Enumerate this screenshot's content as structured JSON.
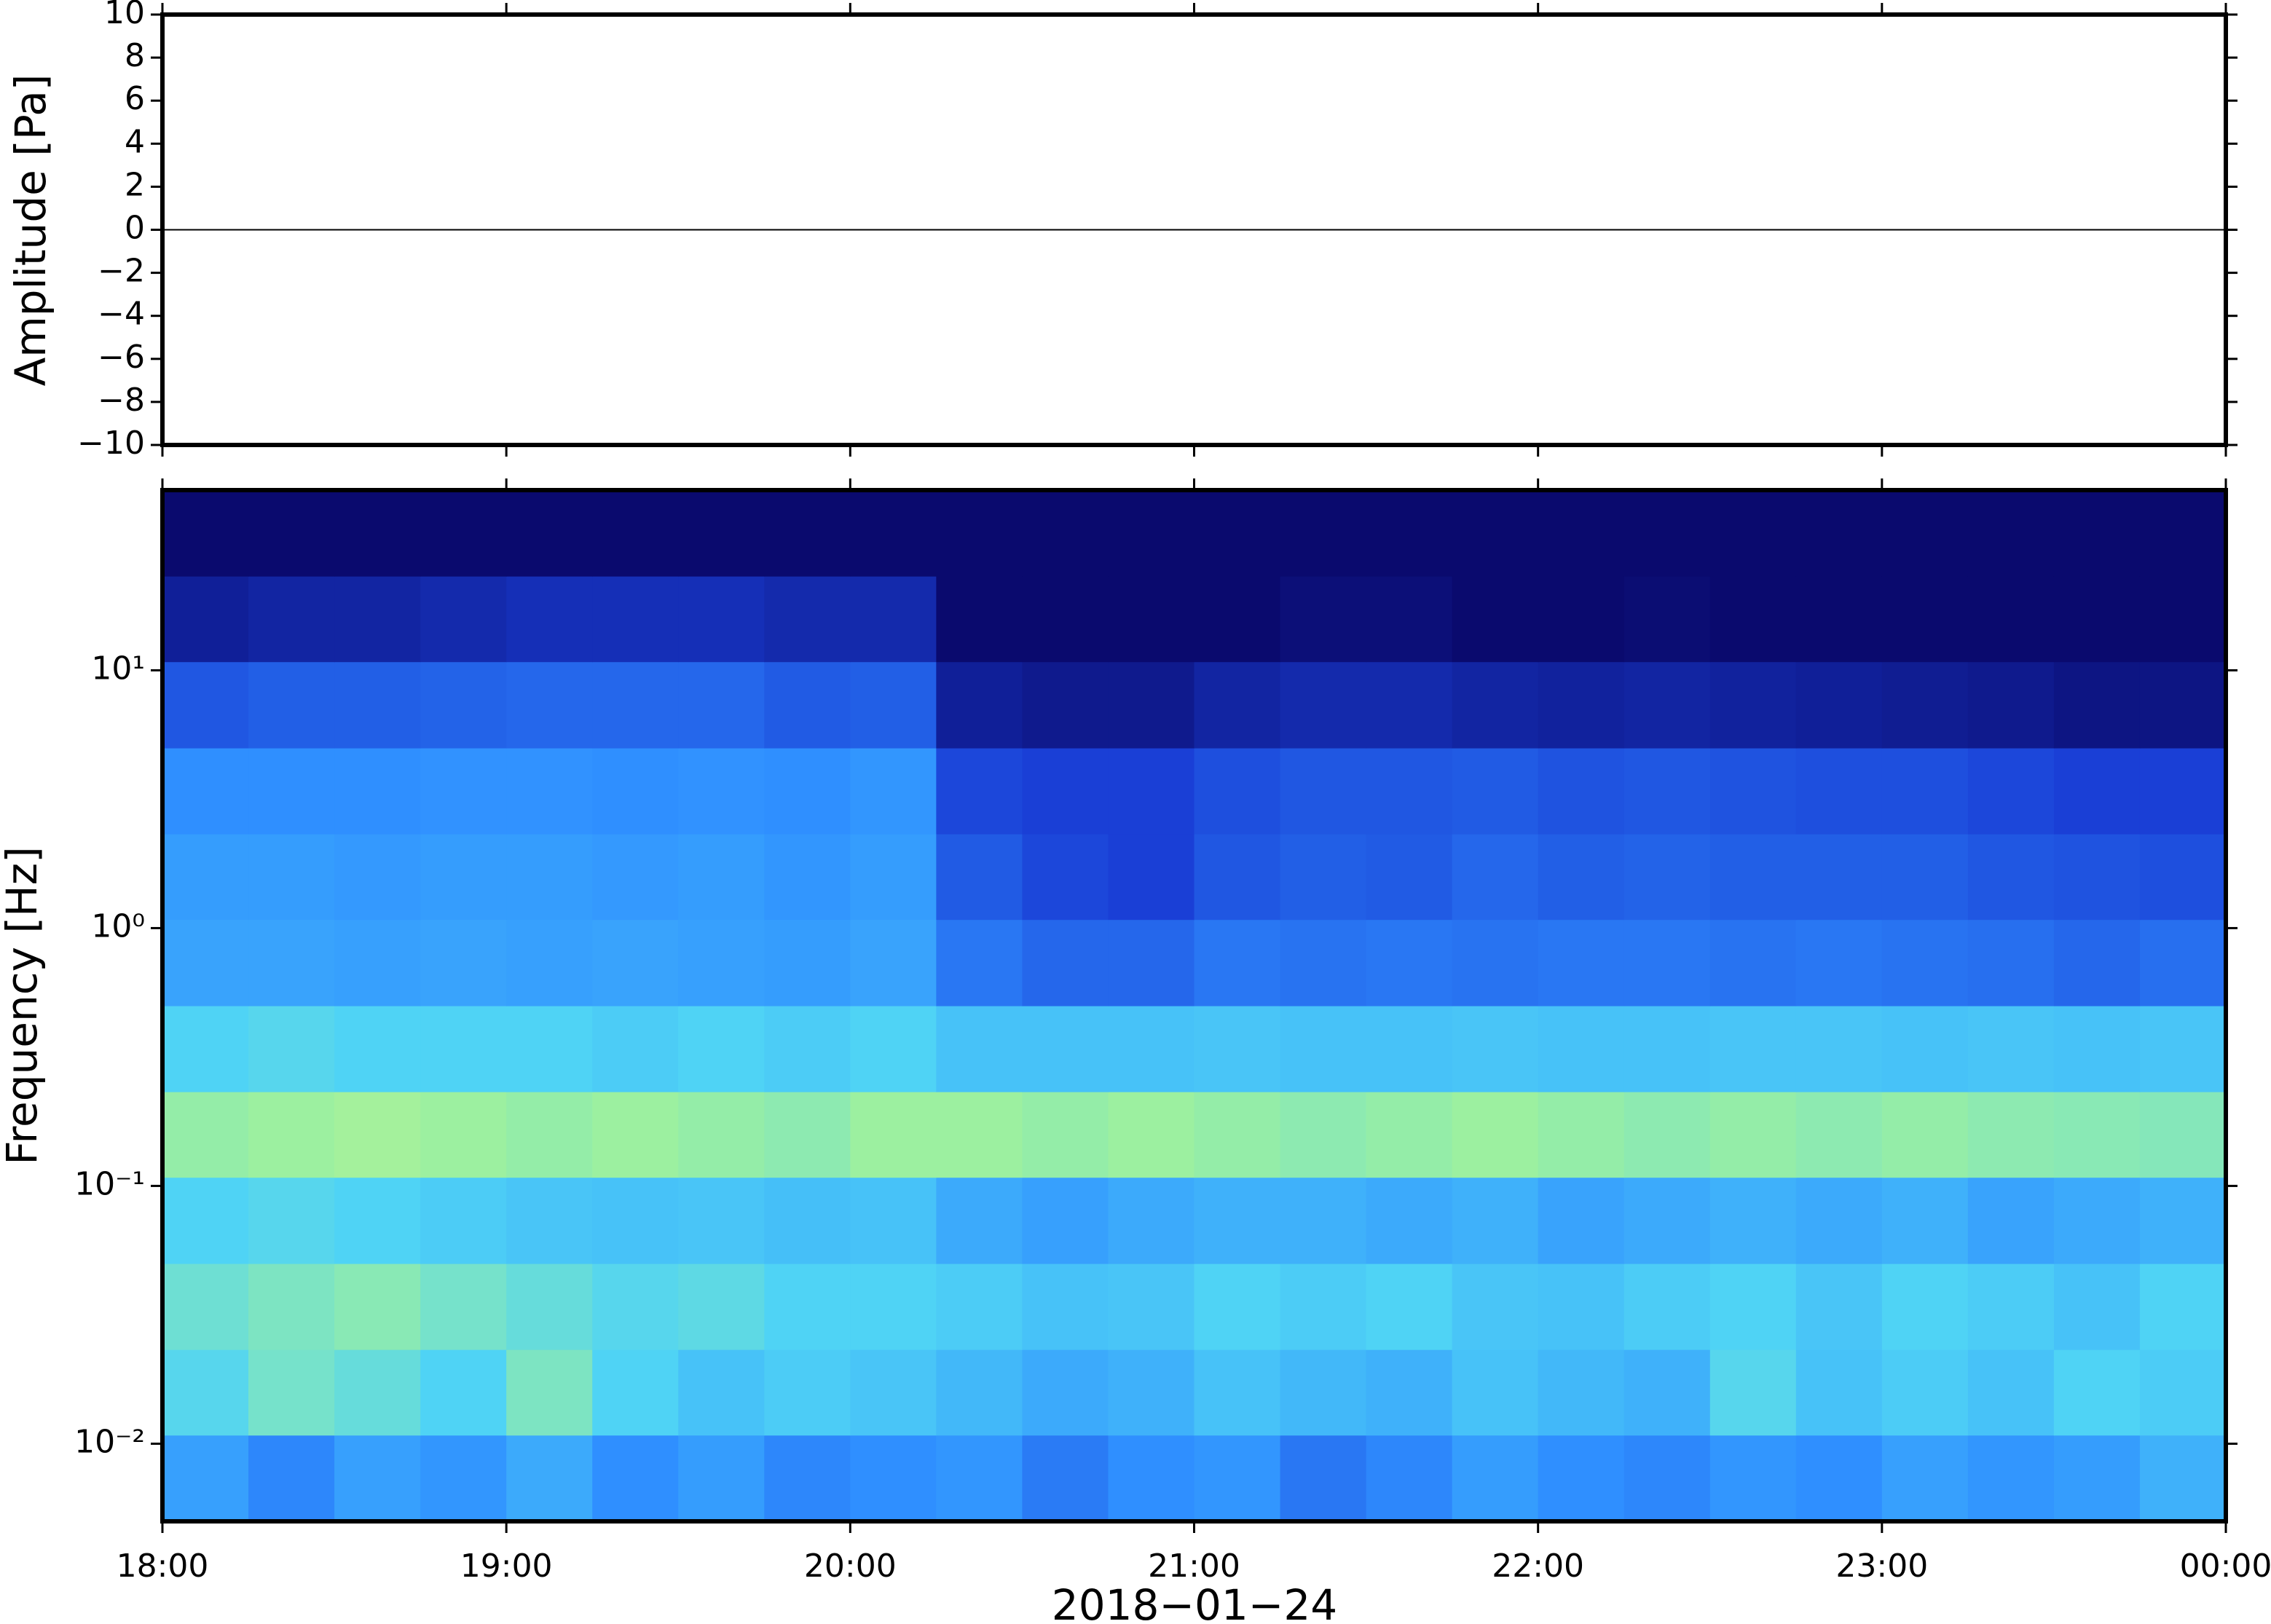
{
  "chart_data": [
    {
      "type": "line",
      "ylabel": "Amplitude [Pa]",
      "x": [
        18,
        24
      ],
      "values": [
        0,
        0
      ],
      "color": "#000000",
      "xlim": [
        18,
        24
      ],
      "ylim": [
        -10,
        10
      ],
      "yticks": [
        10,
        8,
        6,
        4,
        2,
        0,
        {
          "value": -2,
          "label": "−2"
        },
        {
          "value": -4,
          "label": "−4"
        },
        {
          "value": -6,
          "label": "−6"
        },
        {
          "value": -8,
          "label": "−8"
        },
        {
          "value": -10,
          "label": "−10"
        }
      ]
    },
    {
      "type": "heatmap",
      "ylabel": "Frequency [Hz]",
      "xlabel": "2018−01−24",
      "xlim": [
        18,
        24
      ],
      "xticks": [
        {
          "value": 18,
          "label": "18:00"
        },
        {
          "value": 19,
          "label": "19:00"
        },
        {
          "value": 20,
          "label": "20:00"
        },
        {
          "value": 21,
          "label": "21:00"
        },
        {
          "value": 22,
          "label": "22:00"
        },
        {
          "value": 23,
          "label": "23:00"
        },
        {
          "value": 24,
          "label": "00:00"
        }
      ],
      "ylim": [
        0.005,
        50
      ],
      "ylog": true,
      "yticks": [
        {
          "value": 10,
          "label": "10¹"
        },
        {
          "value": 1,
          "label": "10⁰"
        },
        {
          "value": 0.1,
          "label": "10⁻¹"
        },
        {
          "value": 0.01,
          "label": "10⁻²"
        }
      ],
      "colormap": [
        "#0a0a6e",
        "#1a3fd6",
        "#2f8fff",
        "#4fd3f5",
        "#9cf0a0",
        "#eef87a"
      ],
      "xbins": [
        18,
        18.25,
        18.5,
        18.75,
        19,
        19.25,
        19.5,
        19.75,
        20,
        20.25,
        20.5,
        20.75,
        21,
        21.25,
        21.5,
        21.75,
        22,
        22.25,
        22.5,
        22.75,
        23,
        23.25,
        23.5,
        23.75,
        24
      ],
      "ybins": [
        0.005,
        0.0108,
        0.0232,
        0.05,
        0.108,
        0.232,
        0.5,
        1.08,
        2.32,
        5,
        10.8,
        23.2,
        50
      ],
      "z": [
        [
          0.45,
          0.38,
          0.45,
          0.42,
          0.48,
          0.4,
          0.44,
          0.38,
          0.4,
          0.42,
          0.35,
          0.4,
          0.42,
          0.34,
          0.38,
          0.44,
          0.4,
          0.38,
          0.42,
          0.4,
          0.45,
          0.42,
          0.44,
          0.5
        ],
        [
          0.62,
          0.7,
          0.66,
          0.6,
          0.72,
          0.6,
          0.55,
          0.58,
          0.56,
          0.52,
          0.48,
          0.5,
          0.55,
          0.52,
          0.5,
          0.55,
          0.52,
          0.5,
          0.62,
          0.55,
          0.58,
          0.55,
          0.6,
          0.58
        ],
        [
          0.68,
          0.72,
          0.75,
          0.7,
          0.66,
          0.62,
          0.64,
          0.6,
          0.6,
          0.58,
          0.55,
          0.56,
          0.6,
          0.58,
          0.6,
          0.56,
          0.55,
          0.58,
          0.6,
          0.56,
          0.6,
          0.58,
          0.55,
          0.6
        ],
        [
          0.6,
          0.62,
          0.6,
          0.58,
          0.56,
          0.55,
          0.56,
          0.54,
          0.55,
          0.48,
          0.45,
          0.48,
          0.5,
          0.5,
          0.48,
          0.5,
          0.46,
          0.48,
          0.5,
          0.48,
          0.5,
          0.46,
          0.48,
          0.5
        ],
        [
          0.78,
          0.8,
          0.82,
          0.8,
          0.78,
          0.8,
          0.78,
          0.76,
          0.8,
          0.8,
          0.78,
          0.8,
          0.78,
          0.76,
          0.78,
          0.8,
          0.78,
          0.76,
          0.78,
          0.76,
          0.78,
          0.76,
          0.75,
          0.74
        ],
        [
          0.6,
          0.62,
          0.6,
          0.6,
          0.6,
          0.58,
          0.6,
          0.58,
          0.6,
          0.55,
          0.55,
          0.55,
          0.56,
          0.55,
          0.55,
          0.56,
          0.55,
          0.55,
          0.56,
          0.56,
          0.55,
          0.56,
          0.55,
          0.56
        ],
        [
          0.46,
          0.46,
          0.45,
          0.46,
          0.45,
          0.46,
          0.45,
          0.44,
          0.46,
          0.34,
          0.3,
          0.3,
          0.34,
          0.33,
          0.34,
          0.33,
          0.34,
          0.34,
          0.33,
          0.34,
          0.33,
          0.32,
          0.3,
          0.32
        ],
        [
          0.44,
          0.44,
          0.43,
          0.44,
          0.44,
          0.43,
          0.44,
          0.42,
          0.44,
          0.27,
          0.22,
          0.2,
          0.26,
          0.28,
          0.27,
          0.3,
          0.28,
          0.29,
          0.28,
          0.28,
          0.28,
          0.26,
          0.25,
          0.24
        ],
        [
          0.4,
          0.4,
          0.4,
          0.41,
          0.41,
          0.4,
          0.41,
          0.4,
          0.42,
          0.22,
          0.2,
          0.2,
          0.24,
          0.26,
          0.26,
          0.27,
          0.25,
          0.26,
          0.25,
          0.24,
          0.24,
          0.22,
          0.2,
          0.2
        ],
        [
          0.26,
          0.28,
          0.28,
          0.29,
          0.3,
          0.3,
          0.3,
          0.27,
          0.28,
          0.08,
          0.06,
          0.06,
          0.1,
          0.12,
          0.12,
          0.1,
          0.09,
          0.1,
          0.09,
          0.08,
          0.07,
          0.06,
          0.04,
          0.04
        ],
        [
          0.08,
          0.1,
          0.1,
          0.12,
          0.14,
          0.14,
          0.14,
          0.12,
          0.12,
          0,
          0,
          0,
          0,
          0.02,
          0.02,
          0,
          0,
          0.01,
          0,
          0,
          0,
          0,
          0,
          0
        ],
        [
          0,
          0,
          0,
          0,
          0,
          0,
          0,
          0,
          0,
          0,
          0,
          0,
          0,
          0,
          0,
          0,
          0,
          0,
          0,
          0,
          0,
          0,
          0,
          0
        ]
      ]
    }
  ]
}
